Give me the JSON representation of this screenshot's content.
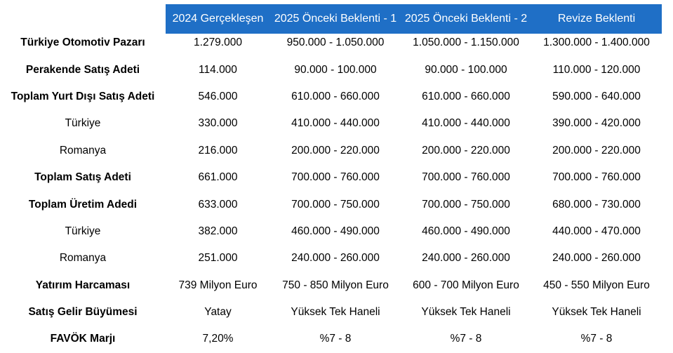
{
  "headers": [
    "2024 Gerçekleşen",
    "2025 Önceki Beklenti - 1",
    "2025 Önceki Beklenti - 2",
    "Revize Beklenti"
  ],
  "rows": [
    {
      "label": "Türkiye Otomotiv Pazarı",
      "bold": true,
      "values": [
        "1.279.000",
        "950.000 - 1.050.000",
        "1.050.000 - 1.150.000",
        "1.300.000 - 1.400.000"
      ]
    },
    {
      "label": "Perakende Satış Adeti",
      "bold": true,
      "values": [
        "114.000",
        "90.000 - 100.000",
        "90.000 - 100.000",
        "110.000 - 120.000"
      ]
    },
    {
      "label": "Toplam Yurt Dışı Satış Adeti",
      "bold": true,
      "values": [
        "546.000",
        "610.000 - 660.000",
        "610.000 - 660.000",
        "590.000 - 640.000"
      ]
    },
    {
      "label": "Türkiye",
      "bold": false,
      "values": [
        "330.000",
        "410.000 - 440.000",
        "410.000 - 440.000",
        "390.000 - 420.000"
      ]
    },
    {
      "label": "Romanya",
      "bold": false,
      "values": [
        "216.000",
        "200.000 - 220.000",
        "200.000 - 220.000",
        "200.000 - 220.000"
      ]
    },
    {
      "label": "Toplam Satış Adeti",
      "bold": true,
      "values": [
        "661.000",
        "700.000 - 760.000",
        "700.000 - 760.000",
        "700.000 - 760.000"
      ]
    },
    {
      "label": "Toplam Üretim Adedi",
      "bold": true,
      "values": [
        "633.000",
        "700.000 - 750.000",
        "700.000 - 750.000",
        "680.000 - 730.000"
      ]
    },
    {
      "label": "Türkiye",
      "bold": false,
      "values": [
        "382.000",
        "460.000 - 490.000",
        "460.000 - 490.000",
        "440.000 - 470.000"
      ]
    },
    {
      "label": "Romanya",
      "bold": false,
      "values": [
        "251.000",
        "240.000 - 260.000",
        "240.000 - 260.000",
        "240.000 - 260.000"
      ]
    },
    {
      "label": "Yatırım Harcaması",
      "bold": true,
      "values": [
        "739 Milyon Euro",
        "750 - 850 Milyon Euro",
        "600 - 700 Milyon Euro",
        "450 - 550 Milyon Euro"
      ]
    },
    {
      "label": "Satış Gelir Büyümesi",
      "bold": true,
      "values": [
        "Yatay",
        "Yüksek Tek Haneli",
        "Yüksek Tek Haneli",
        "Yüksek Tek Haneli"
      ]
    },
    {
      "label": "FAVÖK Marjı",
      "bold": true,
      "values": [
        "7,20%",
        "%7 - 8",
        "%7 - 8",
        "%7 - 8"
      ]
    }
  ],
  "colors": {
    "header_bg": "#1f6fc6",
    "header_text": "#ffffff"
  }
}
